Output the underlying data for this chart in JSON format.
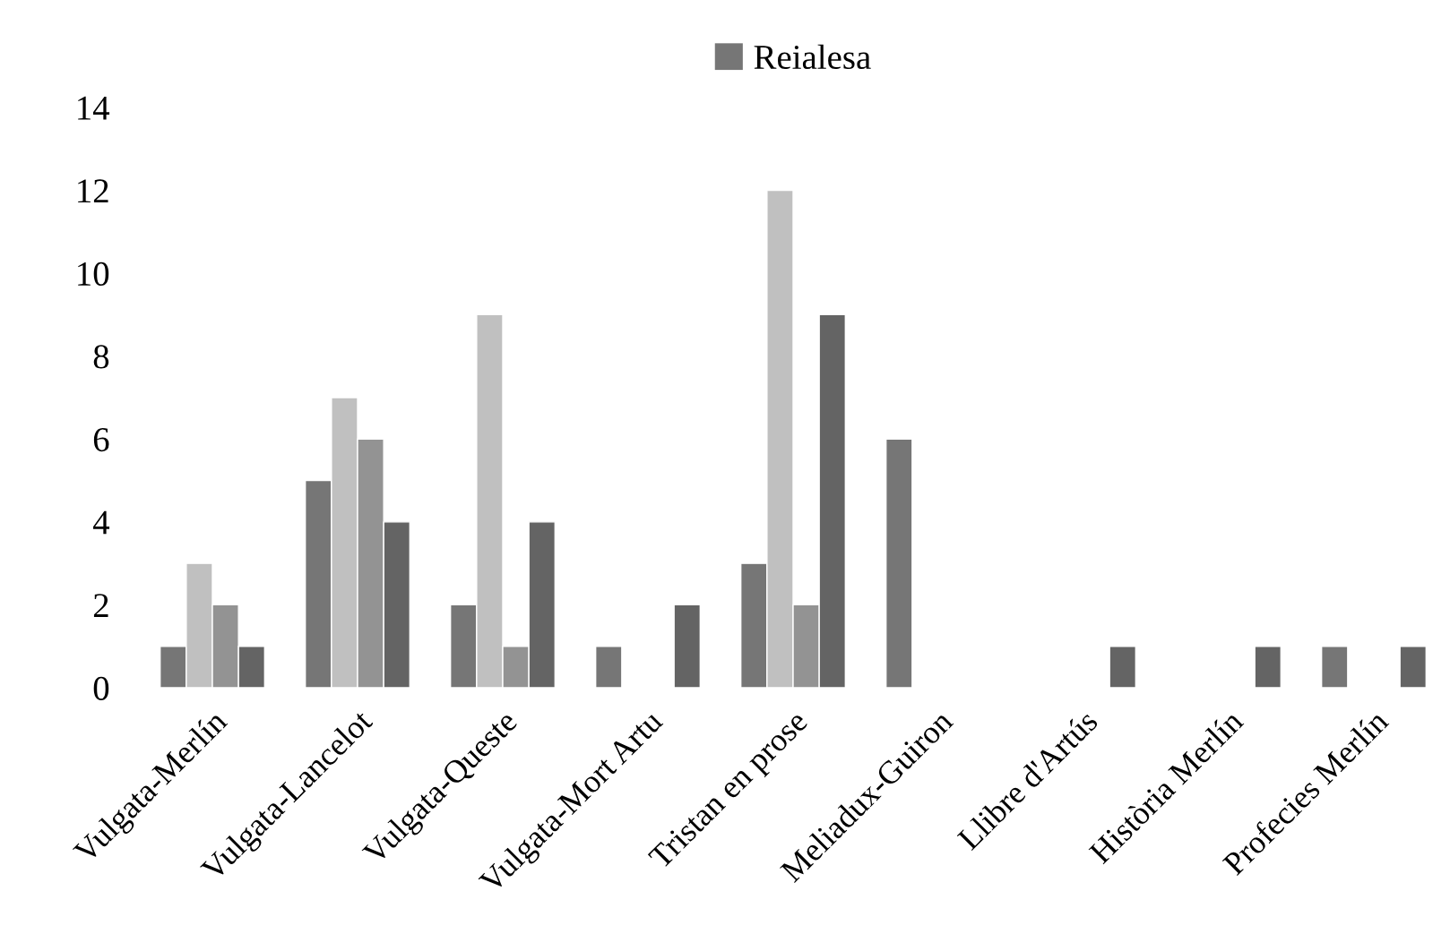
{
  "chart_data": {
    "type": "bar",
    "categories": [
      "Vulgata-Merlín",
      "Vulgata-Lancelot",
      "Vulgata-Queste",
      "Vulgata-Mort Artu",
      "Tristan en prose",
      "Meliadux-Guiron",
      "Llibre d'Artús",
      "Història Merlín",
      "Profecies Merlín"
    ],
    "series": [
      {
        "name": "Reialesa",
        "color": "#767676",
        "values": [
          1,
          5,
          2,
          1,
          3,
          6,
          null,
          null,
          1
        ]
      },
      {
        "color": "#c0c0c0",
        "values": [
          3,
          7,
          9,
          null,
          12,
          null,
          null,
          null,
          null
        ]
      },
      {
        "color": "#939393",
        "values": [
          2,
          6,
          1,
          null,
          2,
          null,
          null,
          null,
          null
        ]
      },
      {
        "color": "#646464",
        "values": [
          1,
          4,
          4,
          2,
          9,
          null,
          1,
          1,
          1
        ]
      }
    ],
    "ylim": [
      0,
      14
    ],
    "yticks": [
      0,
      2,
      4,
      6,
      8,
      10,
      12,
      14
    ],
    "grid": false,
    "legend": "top"
  }
}
